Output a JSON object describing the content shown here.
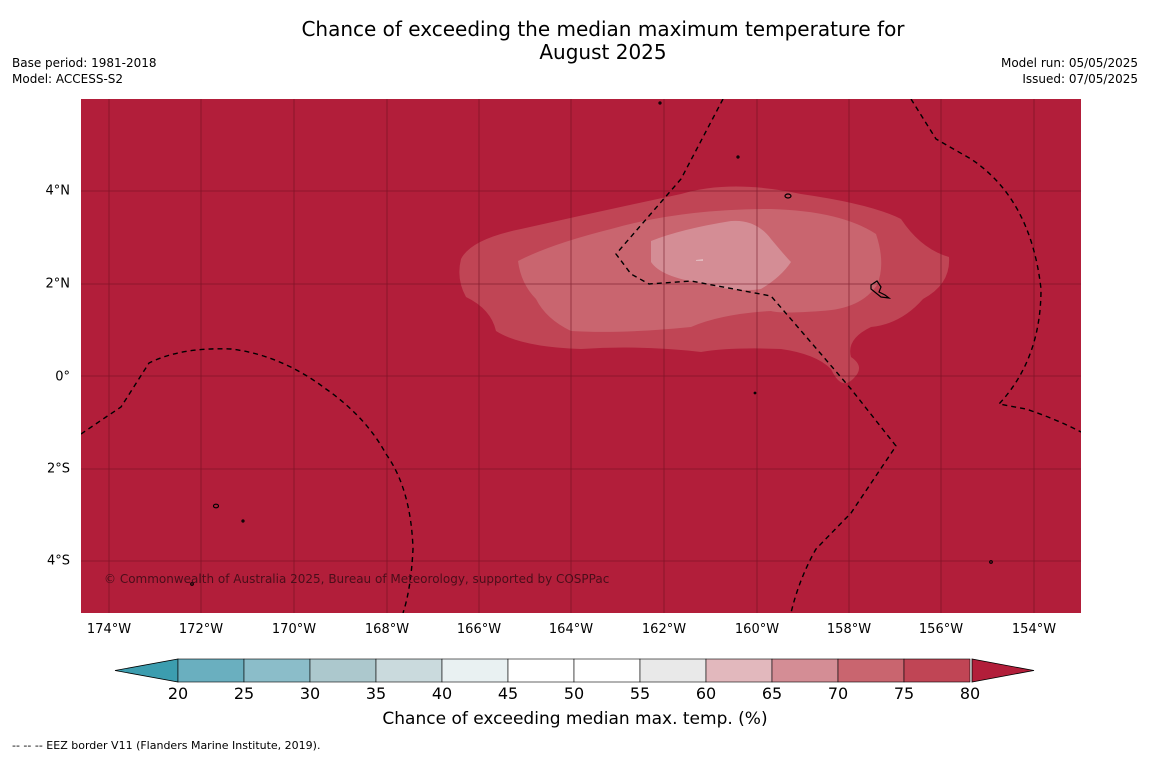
{
  "header": {
    "title_line1": "Chance of exceeding the median maximum temperature for",
    "title_line2": "August 2025",
    "base_period": "Base period: 1981-2018",
    "model": "Model: ACCESS-S2",
    "model_run": "Model run: 05/05/2025",
    "issued": "Issued: 07/05/2025"
  },
  "map": {
    "lat_labels": [
      "4°N",
      "2°N",
      "0°",
      "2°S",
      "4°S"
    ],
    "lon_labels": [
      "174°W",
      "172°W",
      "170°W",
      "168°W",
      "166°W",
      "164°W",
      "162°W",
      "160°W",
      "158°W",
      "156°W",
      "154°W"
    ],
    "copyright": "© Commonwealth of Australia 2025, Bureau of Meteorology, supported by COSPPac",
    "colors": {
      "band_80_plus": "#b21e3a",
      "band_75_80": "#c04555",
      "band_70_75": "#c9656f",
      "band_65_70": "#d48d95"
    }
  },
  "colorbar": {
    "ticks": [
      "20",
      "25",
      "30",
      "35",
      "40",
      "45",
      "50",
      "55",
      "60",
      "65",
      "70",
      "75",
      "80"
    ],
    "colors": [
      "#6aafbf",
      "#8bbdc9",
      "#acc8cd",
      "#cadadd",
      "#e9f1f2",
      "#ffffff",
      "#ffffff",
      "#e9e9e9",
      "#e2b8bd",
      "#d48d95",
      "#c9656f",
      "#c04555"
    ],
    "under_color": "#3c9daf",
    "over_color": "#b21e3a",
    "label": "Chance of exceeding median max. temp. (%)"
  },
  "footnote": "--  --  -- EEZ border V11 (Flanders Marine Institute, 2019)."
}
